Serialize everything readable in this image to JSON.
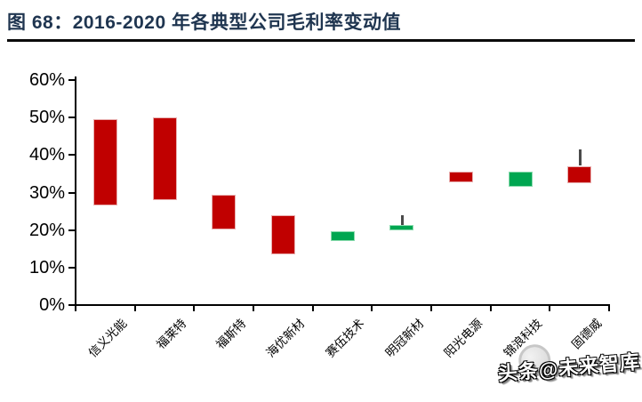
{
  "title": {
    "label": "图 68：2016-2020 年各典型公司毛利率变动值"
  },
  "watermark": {
    "label": "头条@未来智库"
  },
  "chart_data": {
    "type": "bar",
    "variant": "floating-range-candlestick",
    "title": "2016-2020 年各典型公司毛利率变动值",
    "xlabel": "",
    "ylabel": "",
    "categories": [
      "信义光能",
      "福莱特",
      "福斯特",
      "海优新材",
      "赛伍技术",
      "明冠新材",
      "阳光电源",
      "锦浪科技",
      "固德威"
    ],
    "bars": [
      {
        "name": "信义光能",
        "low": 26.5,
        "high": 49.5,
        "direction": "down"
      },
      {
        "name": "福莱特",
        "low": 28.0,
        "high": 50.0,
        "direction": "down"
      },
      {
        "name": "福斯特",
        "low": 20.0,
        "high": 29.3,
        "direction": "down"
      },
      {
        "name": "海优新材",
        "low": 13.5,
        "high": 24.0,
        "direction": "down"
      },
      {
        "name": "赛伍技术",
        "low": 17.0,
        "high": 19.7,
        "direction": "up"
      },
      {
        "name": "明冠新材",
        "low": 19.8,
        "high": 21.3,
        "direction": "up",
        "wick_high": 24.0
      },
      {
        "name": "阳光电源",
        "low": 32.7,
        "high": 35.5,
        "direction": "down"
      },
      {
        "name": "锦浪科技",
        "low": 31.5,
        "high": 35.5,
        "direction": "up"
      },
      {
        "name": "固德威",
        "low": 32.7,
        "high": 37.1,
        "direction": "down",
        "wick_high": 41.4
      }
    ],
    "ylim": [
      0,
      60
    ],
    "ytick_step": 10,
    "ytick_labels": [
      "0%",
      "10%",
      "20%",
      "30%",
      "40%",
      "50%",
      "60%"
    ],
    "grid": false,
    "legend": null,
    "colors": {
      "down": "#C00000",
      "down_border": "#E8AFAF",
      "up": "#00A651",
      "up_border": "#8ADBAE",
      "wick": "#4a4a4a",
      "axis": "#000000",
      "title": "#1F3550"
    }
  }
}
